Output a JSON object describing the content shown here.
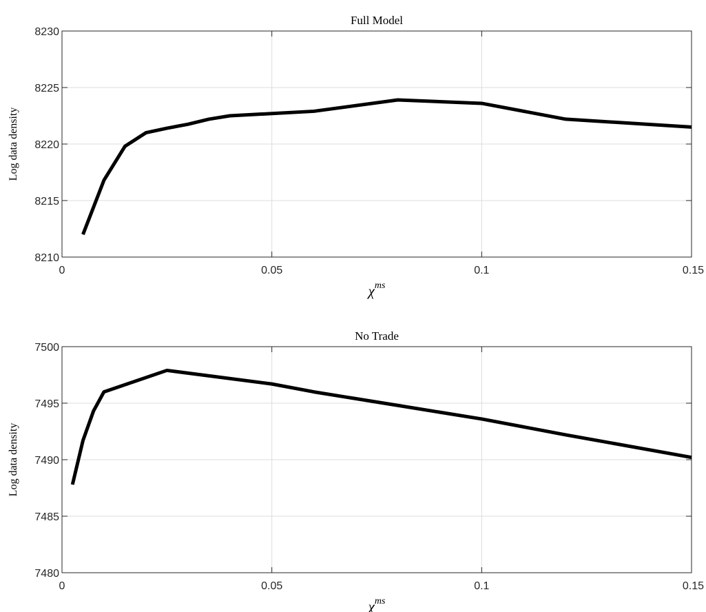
{
  "chart_data": [
    {
      "type": "line",
      "title": "Full Model",
      "xlabel": "χ",
      "xlabel_sup": "ms",
      "ylabel": "Log data density",
      "xlim": [
        0,
        0.15
      ],
      "ylim": [
        8210,
        8230
      ],
      "xticks": [
        0,
        0.05,
        0.1,
        0.15
      ],
      "xtick_labels": [
        "0",
        "0.05",
        "0.1",
        "0.15"
      ],
      "yticks": [
        8210,
        8215,
        8220,
        8225,
        8230
      ],
      "ytick_labels": [
        "8210",
        "8215",
        "8220",
        "8225",
        "8230"
      ],
      "grid": true,
      "series": [
        {
          "color": "#000000",
          "x": [
            0.005,
            0.01,
            0.015,
            0.02,
            0.025,
            0.03,
            0.035,
            0.04,
            0.05,
            0.06,
            0.08,
            0.1,
            0.12,
            0.15
          ],
          "y": [
            8212.0,
            8216.8,
            8219.8,
            8221.0,
            8221.4,
            8221.75,
            8222.2,
            8222.5,
            8222.7,
            8222.9,
            8223.9,
            8223.6,
            8222.2,
            8221.5
          ]
        }
      ]
    },
    {
      "type": "line",
      "title": "No Trade",
      "xlabel": "χ",
      "xlabel_sup": "ms",
      "ylabel": "Log data density",
      "xlim": [
        0,
        0.15
      ],
      "ylim": [
        7480,
        7500
      ],
      "xticks": [
        0,
        0.05,
        0.1,
        0.15
      ],
      "xtick_labels": [
        "0",
        "0.05",
        "0.1",
        "0.15"
      ],
      "yticks": [
        7480,
        7485,
        7490,
        7495,
        7500
      ],
      "ytick_labels": [
        "7480",
        "7485",
        "7490",
        "7495",
        "7500"
      ],
      "grid": true,
      "series": [
        {
          "color": "#000000",
          "x": [
            0.0025,
            0.005,
            0.0075,
            0.01,
            0.025,
            0.05,
            0.06,
            0.08,
            0.1,
            0.12,
            0.15
          ],
          "y": [
            7487.8,
            7491.7,
            7494.3,
            7496.0,
            7497.9,
            7496.7,
            7496.0,
            7494.8,
            7493.6,
            7492.2,
            7490.2
          ]
        }
      ]
    }
  ]
}
